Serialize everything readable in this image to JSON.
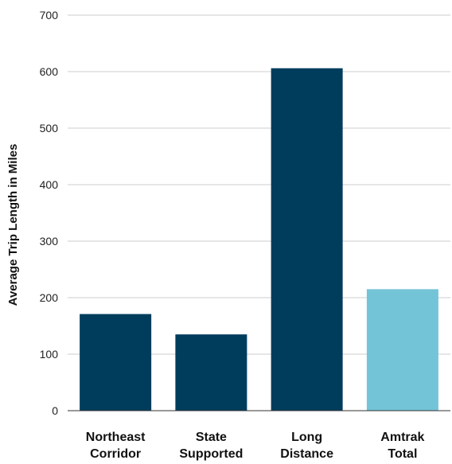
{
  "chart_data": {
    "type": "bar",
    "title": "",
    "xlabel": "",
    "ylabel": "Average Trip Length in Miles",
    "ylim": [
      0,
      700
    ],
    "yticks": [
      0,
      100,
      200,
      300,
      400,
      500,
      600,
      700
    ],
    "grid": true,
    "categories": [
      [
        "Northeast",
        "Corridor"
      ],
      [
        "State",
        "Supported"
      ],
      [
        "Long",
        "Distance"
      ],
      [
        "Amtrak",
        "Total"
      ]
    ],
    "values": [
      171,
      135,
      606,
      215
    ],
    "colors": [
      "#003d5c",
      "#003d5c",
      "#003d5c",
      "#74c4d7"
    ]
  },
  "colors": {
    "gridline": "#cccccc",
    "axis": "#333333"
  }
}
